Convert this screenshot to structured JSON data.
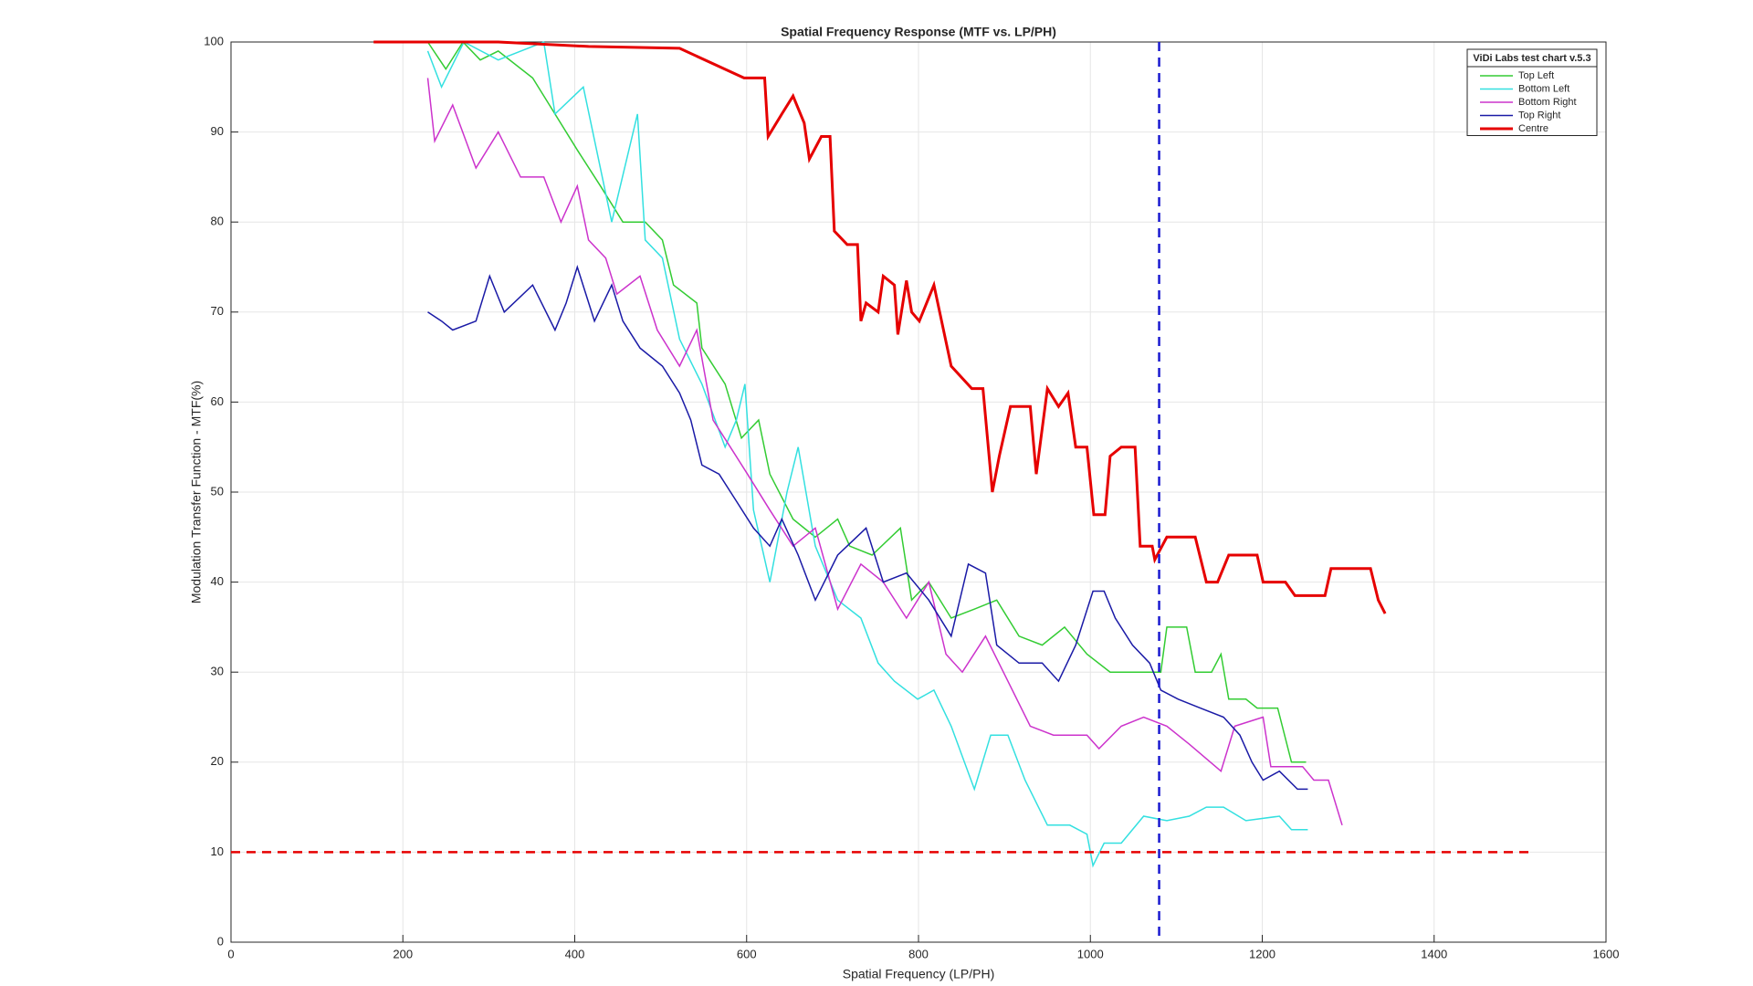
{
  "chart_data": {
    "type": "line",
    "title": "Spatial Frequency Response (MTF vs. LP/PH)",
    "x_label": "Spatial Frequency (LP/PH)",
    "y_label": "Modulation Transfer Function - MTF(%)",
    "xlim": [
      0,
      1600
    ],
    "ylim": [
      0,
      100
    ],
    "xticks": [
      0,
      200,
      400,
      600,
      800,
      1000,
      1200,
      1400,
      1600
    ],
    "yticks": [
      0,
      10,
      20,
      30,
      40,
      50,
      60,
      70,
      80,
      90,
      100
    ],
    "grid": true,
    "legend_title": "ViDi Labs test chart v.5.3",
    "legend_position": "upper right",
    "series": [
      {
        "name": "Top Left",
        "color": "#33cc33",
        "x": [
          229,
          250,
          270,
          290,
          311,
          351,
          377,
          403,
          430,
          456,
          482,
          502,
          515,
          542,
          548,
          575,
          594,
          614,
          627,
          654,
          680,
          706,
          720,
          746,
          779,
          792,
          812,
          838,
          865,
          891,
          917,
          944,
          970,
          996,
          1023,
          1049,
          1082,
          1089,
          1112,
          1122,
          1141,
          1152,
          1161,
          1181,
          1194,
          1218,
          1234,
          1251
        ],
        "values": [
          100,
          97,
          100,
          98,
          99,
          96,
          92,
          88,
          84,
          80,
          80,
          78,
          73,
          71,
          66,
          62,
          56,
          58,
          52,
          47,
          45,
          47,
          44,
          43,
          46,
          38,
          40,
          36,
          37,
          38,
          34,
          33,
          35,
          32,
          30,
          30,
          30,
          35,
          35,
          30,
          30,
          32,
          27,
          27,
          26,
          26,
          20,
          20
        ]
      },
      {
        "name": "Bottom Left",
        "color": "#33e0e0",
        "x": [
          229,
          245,
          271,
          311,
          364,
          377,
          410,
          443,
          473,
          482,
          502,
          522,
          548,
          575,
          588,
          598,
          608,
          627,
          647,
          660,
          680,
          706,
          733,
          753,
          772,
          799,
          818,
          838,
          865,
          884,
          904,
          924,
          950,
          976,
          996,
          1003,
          1016,
          1036,
          1062,
          1089,
          1115,
          1135,
          1155,
          1181,
          1220,
          1234,
          1253
        ],
        "values": [
          99,
          95,
          100,
          98,
          100,
          92,
          95,
          80,
          92,
          78,
          76,
          67,
          62,
          55,
          58,
          62,
          48,
          40,
          50,
          55,
          44,
          38,
          36,
          31,
          29,
          27,
          28,
          24,
          17,
          23,
          23,
          18,
          13,
          13,
          12,
          8.5,
          11,
          11,
          14,
          13.5,
          14,
          15,
          15,
          13.5,
          14,
          12.5,
          12.5
        ]
      },
      {
        "name": "Bottom Right",
        "color": "#cc33cc",
        "x": [
          229,
          237,
          258,
          285,
          311,
          337,
          364,
          384,
          403,
          416,
          436,
          449,
          476,
          496,
          522,
          542,
          561,
          581,
          601,
          627,
          654,
          680,
          706,
          733,
          759,
          786,
          812,
          832,
          851,
          878,
          904,
          930,
          957,
          996,
          1010,
          1036,
          1062,
          1089,
          1115,
          1152,
          1168,
          1201,
          1210,
          1247,
          1260,
          1277,
          1293
        ],
        "values": [
          96,
          89,
          93,
          86,
          90,
          85,
          85,
          80,
          84,
          78,
          76,
          72,
          74,
          68,
          64,
          68,
          58,
          55,
          52,
          48,
          44,
          46,
          37,
          42,
          40,
          36,
          40,
          32,
          30,
          34,
          29,
          24,
          23,
          23,
          21.5,
          24,
          25,
          24,
          22,
          19,
          24,
          25,
          19.5,
          19.5,
          18,
          18,
          13
        ]
      },
      {
        "name": "Top Right",
        "color": "#1a1aa6",
        "x": [
          229,
          245,
          258,
          285,
          301,
          318,
          351,
          377,
          390,
          403,
          423,
          443,
          456,
          476,
          502,
          522,
          535,
          548,
          568,
          588,
          608,
          627,
          641,
          660,
          680,
          706,
          739,
          759,
          786,
          812,
          838,
          858,
          878,
          891,
          917,
          944,
          963,
          983,
          1003,
          1016,
          1029,
          1049,
          1069,
          1082,
          1102,
          1128,
          1155,
          1174,
          1188,
          1201,
          1220,
          1241,
          1253
        ],
        "values": [
          70,
          69,
          68,
          69,
          74,
          70,
          73,
          68,
          71,
          75,
          69,
          73,
          69,
          66,
          64,
          61,
          58,
          53,
          52,
          49,
          46,
          44,
          47,
          43,
          38,
          43,
          46,
          40,
          41,
          38,
          34,
          42,
          41,
          33,
          31,
          31,
          29,
          33,
          39,
          39,
          36,
          33,
          31,
          28,
          27,
          26,
          25,
          23,
          20,
          18,
          19,
          17,
          17
        ]
      },
      {
        "name": "Centre",
        "color": "#e60000",
        "x": [
          166,
          311,
          416,
          522,
          597,
          621,
          625,
          641,
          654,
          667,
          673,
          687,
          697,
          702,
          717,
          729,
          733,
          739,
          753,
          759,
          772,
          776,
          786,
          792,
          801,
          818,
          838,
          862,
          875,
          886,
          894,
          907,
          930,
          937,
          950,
          963,
          974,
          983,
          996,
          1004,
          1017,
          1023,
          1036,
          1052,
          1058,
          1072,
          1075,
          1089,
          1122,
          1135,
          1148,
          1161,
          1194,
          1201,
          1227,
          1238,
          1273,
          1280,
          1326,
          1335,
          1343
        ],
        "values": [
          100,
          100,
          99.5,
          99.3,
          96,
          96,
          89.5,
          92,
          94,
          91,
          87,
          89.5,
          89.5,
          79,
          77.5,
          77.5,
          69,
          71,
          70,
          74,
          73,
          67.5,
          73.5,
          70,
          69,
          73,
          64,
          61.5,
          61.5,
          50,
          54,
          59.5,
          59.5,
          52,
          61.5,
          59.5,
          61,
          55,
          55,
          47.5,
          47.5,
          54,
          55,
          55,
          44,
          44,
          42.5,
          45,
          45,
          40,
          40,
          43,
          43,
          40,
          40,
          38.5,
          38.5,
          41.5,
          41.5,
          38,
          36.5
        ]
      }
    ],
    "hline": {
      "y": 10,
      "x": [
        0,
        1513
      ],
      "color": "#e60000"
    },
    "vline": {
      "x": 1080,
      "color": "#1a1ad0"
    }
  }
}
